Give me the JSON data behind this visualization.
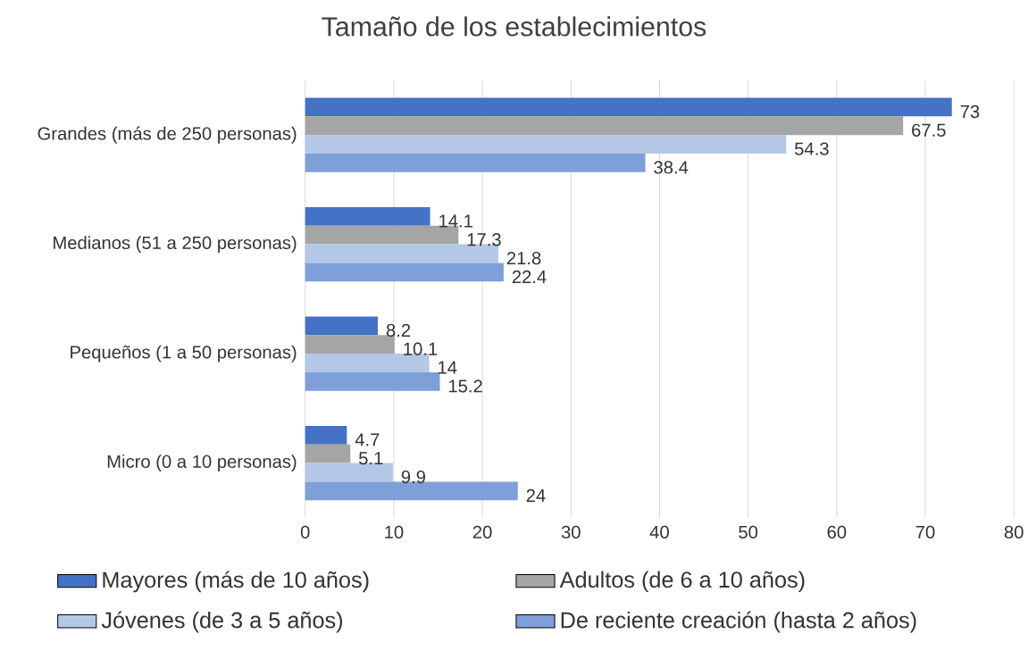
{
  "chart_data": {
    "type": "bar",
    "orientation": "horizontal",
    "title": "Tamaño de los establecimientos",
    "categories": [
      "Grandes (más de 250 personas)",
      "Medianos (51 a 250 personas)",
      "Pequeños (1 a 50 personas)",
      "Micro (0 a 10 personas)"
    ],
    "series": [
      {
        "name": "Mayores (más de 10 años)",
        "color": "#4472c4",
        "values": [
          73,
          14.1,
          8.2,
          4.7
        ]
      },
      {
        "name": "Adultos (de 6 a 10 años)",
        "color": "#a5a5a5",
        "values": [
          67.5,
          17.3,
          10.1,
          5.1
        ]
      },
      {
        "name": "Jóvenes (de 3 a 5 años)",
        "color": "#b4c7e7",
        "values": [
          54.3,
          21.8,
          14,
          9.9
        ]
      },
      {
        "name": "De reciente creación (hasta 2 años)",
        "color": "#7f9fd8",
        "values": [
          38.4,
          22.4,
          15.2,
          24
        ]
      }
    ],
    "xlim": [
      0,
      80
    ],
    "xticks": [
      0,
      10,
      20,
      30,
      40,
      50,
      60,
      70,
      80
    ],
    "grid": "x",
    "legend": "bottom",
    "data_labels": true
  }
}
